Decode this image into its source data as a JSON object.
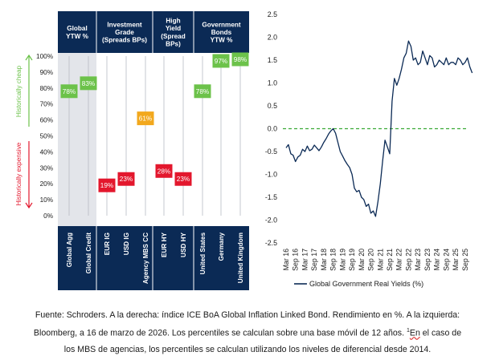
{
  "left_panel": {
    "headers": [
      {
        "lines": [
          "Global",
          "YTW %"
        ]
      },
      {
        "lines": [
          "Investment",
          "Grade",
          "(Spreads BPs)"
        ]
      },
      {
        "lines": [
          "High",
          "Yield",
          "(Spread",
          "BPs)"
        ]
      },
      {
        "lines": [
          "Government",
          "Bonds",
          "YTW %"
        ]
      }
    ],
    "side_labels": {
      "cheap": "Historically cheap",
      "expensive": "Historically expensive"
    },
    "colors": {
      "navy": "#0b2a55",
      "green": "#6cc24a",
      "orange": "#f2a81d",
      "red": "#e3172d",
      "shade": "#e3e5ea",
      "cheap_arrow": "#6cc24a",
      "expensive_arrow": "#e3172d"
    }
  },
  "footer": {
    "line1": "Fuente: Schroders. A la derecha: índice ICE BoA Global Inflation Linked Bond. Rendimiento en %. A la izquierda:",
    "line2a": "Bloomberg, a 16 de marzo de 2026. Los percentiles se calculan sobre una base móvil de 12 años. ",
    "sup": "1",
    "underlined": "En",
    "line2b": " el caso de",
    "line3": "los MBS de agencias, los percentiles se calculan utilizando los niveles de diferencial desde 2014."
  },
  "chart_data": [
    {
      "type": "bar",
      "subtype": "percentile-markers",
      "categories": [
        "Global Agg",
        "Global Credit",
        "EUR IG",
        "USD IG",
        "Agency MBS CC",
        "EUR HY",
        "USD HY",
        "United States",
        "Germany",
        "United Kingdom"
      ],
      "groups": [
        "Global YTW %",
        "Global YTW %",
        "Investment Grade (Spreads BPs)",
        "Investment Grade (Spreads BPs)",
        "Investment Grade (Spreads BPs)",
        "High Yield (Spread BPs)",
        "High Yield (Spread BPs)",
        "Government Bonds YTW %",
        "Government Bonds YTW %",
        "Government Bonds YTW %"
      ],
      "values": [
        78,
        83,
        19,
        23,
        61,
        28,
        23,
        78,
        97,
        98
      ],
      "labels": [
        "78%",
        "83%",
        "19%",
        "23%",
        "61%",
        "28%",
        "23%",
        "78%",
        "97%",
        "98%"
      ],
      "colors": [
        "green",
        "green",
        "red",
        "red",
        "orange",
        "red",
        "red",
        "green",
        "green",
        "green"
      ],
      "yticks": [
        "0%",
        "10%",
        "20%",
        "30%",
        "40%",
        "50%",
        "60%",
        "70%",
        "80%",
        "90%",
        "100%"
      ],
      "ylim": [
        0,
        100
      ]
    },
    {
      "type": "line",
      "series": [
        {
          "name": "Global Government Real Yields (%)",
          "color": "#0b2a55"
        }
      ],
      "legend": "Global Government Real Yields (%)",
      "ylim": [
        -2.5,
        2.5
      ],
      "yticks": [
        "2.5",
        "2.0",
        "1.5",
        "1.0",
        "0.5",
        "0.0",
        "-0.5",
        "-1.0",
        "-1.5",
        "-2.0",
        "-2.5"
      ],
      "xticks": [
        "Mar 16",
        "Sep 16",
        "Mar 17",
        "Sep 17",
        "Mar 18",
        "Sep 18",
        "Mar 19",
        "Sep 19",
        "Mar 20",
        "Sep 20",
        "Mar 21",
        "Sep 21",
        "Mar 22",
        "Sep 22",
        "Mar 23",
        "Sep 23",
        "Mar 24",
        "Sep 24",
        "Mar 25",
        "Sep 25"
      ],
      "reference_line": {
        "y": 0,
        "style": "dashed",
        "color": "#3aa935"
      },
      "x": [
        0,
        0.25,
        0.5,
        0.75,
        1.0,
        1.25,
        1.5,
        1.75,
        2.0,
        2.25,
        2.5,
        2.75,
        3.0,
        3.25,
        3.5,
        3.75,
        4.0,
        4.25,
        4.5,
        4.75,
        5.0,
        5.25,
        5.5,
        5.75,
        6.0,
        6.25,
        6.5,
        6.75,
        7.0,
        7.25,
        7.5,
        7.75,
        8.0,
        8.25,
        8.5,
        8.75,
        9.0,
        9.25,
        9.5,
        9.75,
        10.0,
        10.25,
        10.5,
        10.75,
        11.0,
        11.25,
        11.5,
        11.75,
        12.0,
        12.25,
        12.5,
        12.75,
        13.0,
        13.25,
        13.5,
        13.75,
        14.0,
        14.25,
        14.5,
        14.75,
        15.0,
        15.25,
        15.5,
        15.75,
        16.0,
        16.25,
        16.5,
        16.75,
        17.0,
        17.25,
        17.5,
        17.75,
        18.0,
        18.25,
        18.5,
        18.75,
        19.0,
        19.25,
        19.5,
        19.75
      ],
      "values": [
        -0.42,
        -0.35,
        -0.55,
        -0.58,
        -0.72,
        -0.62,
        -0.58,
        -0.45,
        -0.5,
        -0.38,
        -0.48,
        -0.45,
        -0.36,
        -0.42,
        -0.48,
        -0.4,
        -0.3,
        -0.22,
        -0.12,
        -0.05,
        0.0,
        -0.1,
        -0.3,
        -0.5,
        -0.6,
        -0.7,
        -0.78,
        -0.85,
        -1.0,
        -1.3,
        -1.38,
        -1.35,
        -1.5,
        -1.55,
        -1.7,
        -1.65,
        -1.85,
        -1.8,
        -1.92,
        -1.6,
        -1.2,
        -0.7,
        -0.25,
        -0.4,
        -0.55,
        0.6,
        1.1,
        0.95,
        1.1,
        1.3,
        1.55,
        1.65,
        1.92,
        1.8,
        1.5,
        1.55,
        1.4,
        1.45,
        1.7,
        1.55,
        1.4,
        1.6,
        1.55,
        1.35,
        1.4,
        1.5,
        1.45,
        1.4,
        1.55,
        1.4,
        1.45,
        1.45,
        1.4,
        1.55,
        1.5,
        1.4,
        1.45,
        1.55,
        1.35,
        1.22
      ]
    }
  ]
}
